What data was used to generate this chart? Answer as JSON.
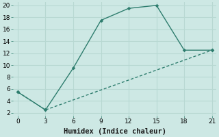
{
  "xlabel": "Humidex (Indice chaleur)",
  "line1_x": [
    0,
    3,
    6,
    9,
    12,
    15,
    18,
    21
  ],
  "line1_y": [
    5.5,
    2.5,
    9.5,
    17.5,
    19.5,
    20.0,
    12.5,
    12.5
  ],
  "line2_x": [
    0,
    3,
    21
  ],
  "line2_y": [
    5.5,
    2.5,
    12.5
  ],
  "color": "#2e7d6e",
  "bg_color": "#cde8e4",
  "grid_color": "#b8d8d2",
  "xlim": [
    -0.5,
    21.5
  ],
  "ylim": [
    1.5,
    20.5
  ],
  "xticks": [
    0,
    3,
    6,
    9,
    12,
    15,
    18,
    21
  ],
  "yticks": [
    2,
    4,
    6,
    8,
    10,
    12,
    14,
    16,
    18,
    20
  ],
  "tick_fontsize": 6.5,
  "xlabel_fontsize": 7.5,
  "linewidth": 1.0,
  "markersize": 2.8
}
